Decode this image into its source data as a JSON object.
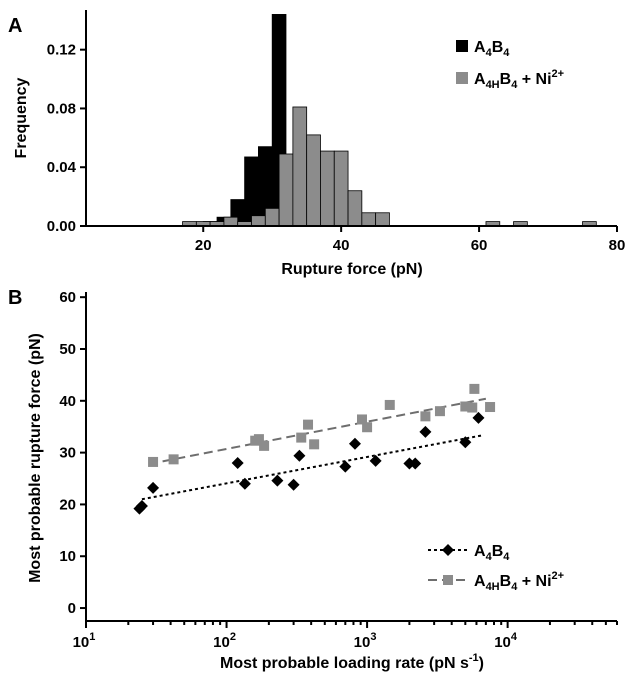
{
  "colors": {
    "black": "#000000",
    "gray": "#8c8c8c",
    "grayLine": "#6e6e6e"
  },
  "chart_data": [
    {
      "panel": "A",
      "type": "bar",
      "xlabel": "Rupture force (pN)",
      "ylabel": "Frequency",
      "xlim": [
        3,
        80
      ],
      "ylim": [
        0,
        0.147
      ],
      "xticks": [
        20,
        40,
        60,
        80
      ],
      "yticks": [
        0.0,
        0.04,
        0.08,
        0.12
      ],
      "ytick_labels": [
        "0.00",
        "0.04",
        "0.08",
        "0.12"
      ],
      "bin_width": 2,
      "legend_position": "top-right",
      "series": [
        {
          "name": "A4B4",
          "legend": {
            "base": "A",
            "sub1": "4",
            "mid": "B",
            "sub2": "4",
            "tail": ""
          },
          "color": "#000000",
          "bin_starts": [
            20,
            22,
            24,
            26,
            28,
            30
          ],
          "values": [
            0.003,
            0.006,
            0.018,
            0.047,
            0.054,
            0.144
          ]
        },
        {
          "name": "A4HB4 + Ni2+",
          "legend": {
            "base": "A",
            "sub1": "4H",
            "mid": "B",
            "sub2": "4",
            "tail": " + Ni",
            "sup": "2+"
          },
          "color": "#8c8c8c",
          "bin_starts": [
            17,
            19,
            21,
            23,
            25,
            27,
            29,
            31,
            33,
            35,
            37,
            39,
            41,
            43,
            45,
            61,
            65,
            75
          ],
          "values": [
            0.003,
            0.003,
            0.003,
            0.006,
            0.003,
            0.007,
            0.012,
            0.049,
            0.081,
            0.062,
            0.051,
            0.051,
            0.024,
            0.009,
            0.009,
            0.003,
            0.003,
            0.003
          ]
        }
      ]
    },
    {
      "panel": "B",
      "type": "scatter",
      "xlabel": "Most probable loading rate (pN s",
      "xlabel_sup": "-1",
      "xlabel_tail": ")",
      "ylabel": "Most probable rupture force (pN)",
      "x_scale": "log",
      "xlim": [
        10,
        60000
      ],
      "ylim": [
        -2.5,
        61
      ],
      "xticks": [
        {
          "base": "10",
          "exp": "1",
          "value": 10
        },
        {
          "base": "10",
          "exp": "2",
          "value": 100
        },
        {
          "base": "10",
          "exp": "3",
          "value": 1000
        },
        {
          "base": "10",
          "exp": "4",
          "value": 10000
        }
      ],
      "yticks": [
        0,
        10,
        20,
        30,
        40,
        50,
        60
      ],
      "legend_position": "bottom-right",
      "series": [
        {
          "name": "A4B4",
          "legend": {
            "base": "A",
            "sub1": "4",
            "mid": "B",
            "sub2": "4",
            "tail": ""
          },
          "marker": "diamond",
          "color": "#000000",
          "line": "dotted",
          "x": [
            24,
            25,
            30,
            120,
            135,
            230,
            300,
            330,
            700,
            820,
            1150,
            2000,
            2200,
            2600,
            5000,
            6200
          ],
          "y": [
            19.2,
            19.7,
            23.2,
            28.0,
            24.0,
            24.6,
            23.8,
            29.4,
            27.3,
            31.7,
            28.4,
            27.9,
            27.9,
            34.0,
            32.0,
            36.7
          ],
          "fit_x": [
            25,
            6500
          ],
          "fit_y": [
            21.0,
            33.3
          ]
        },
        {
          "name": "A4HB4 + Ni2+",
          "legend": {
            "base": "A",
            "sub1": "4H",
            "mid": "B",
            "sub2": "4",
            "tail": " + Ni",
            "sup": "2+"
          },
          "marker": "square",
          "color": "#8c8c8c",
          "line": "dashed",
          "x": [
            30,
            42,
            160,
            170,
            185,
            340,
            380,
            420,
            920,
            1000,
            1450,
            2600,
            3300,
            5000,
            5600,
            5800,
            7500
          ],
          "y": [
            28.2,
            28.7,
            32.3,
            32.6,
            31.3,
            32.9,
            35.4,
            31.6,
            36.4,
            34.9,
            39.2,
            37.0,
            38.0,
            38.9,
            38.7,
            42.3,
            38.8
          ],
          "fit_x": [
            28,
            7000
          ],
          "fit_y": [
            27.8,
            40.4
          ]
        }
      ]
    }
  ]
}
